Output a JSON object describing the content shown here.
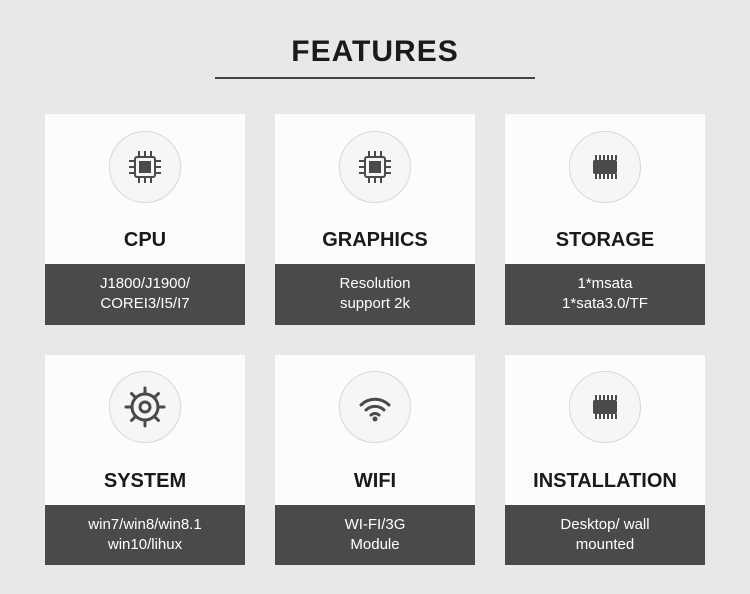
{
  "page": {
    "title": "FEATURES",
    "background_color": "#e8e8e8",
    "card_bg": "#fcfcfc",
    "desc_bg": "#4a4a4a",
    "desc_color": "#ffffff",
    "title_color": "#1a1a1a",
    "icon_color": "#4a4a4a"
  },
  "features": [
    {
      "icon": "cpu",
      "title": "CPU",
      "desc": "J1800/J1900/\nCOREI3/I5/I7"
    },
    {
      "icon": "cpu",
      "title": "GRAPHICS",
      "desc": "Resolution\nsupport 2k"
    },
    {
      "icon": "chip",
      "title": "STORAGE",
      "desc": "1*msata\n1*sata3.0/TF"
    },
    {
      "icon": "gear",
      "title": "SYSTEM",
      "desc": "win7/win8/win8.1\nwin10/lihux"
    },
    {
      "icon": "wifi",
      "title": "WIFI",
      "desc": "WI-FI/3G\nModule"
    },
    {
      "icon": "chip",
      "title": "INSTALLATION",
      "desc": "Desktop/ wall\nmounted"
    }
  ]
}
